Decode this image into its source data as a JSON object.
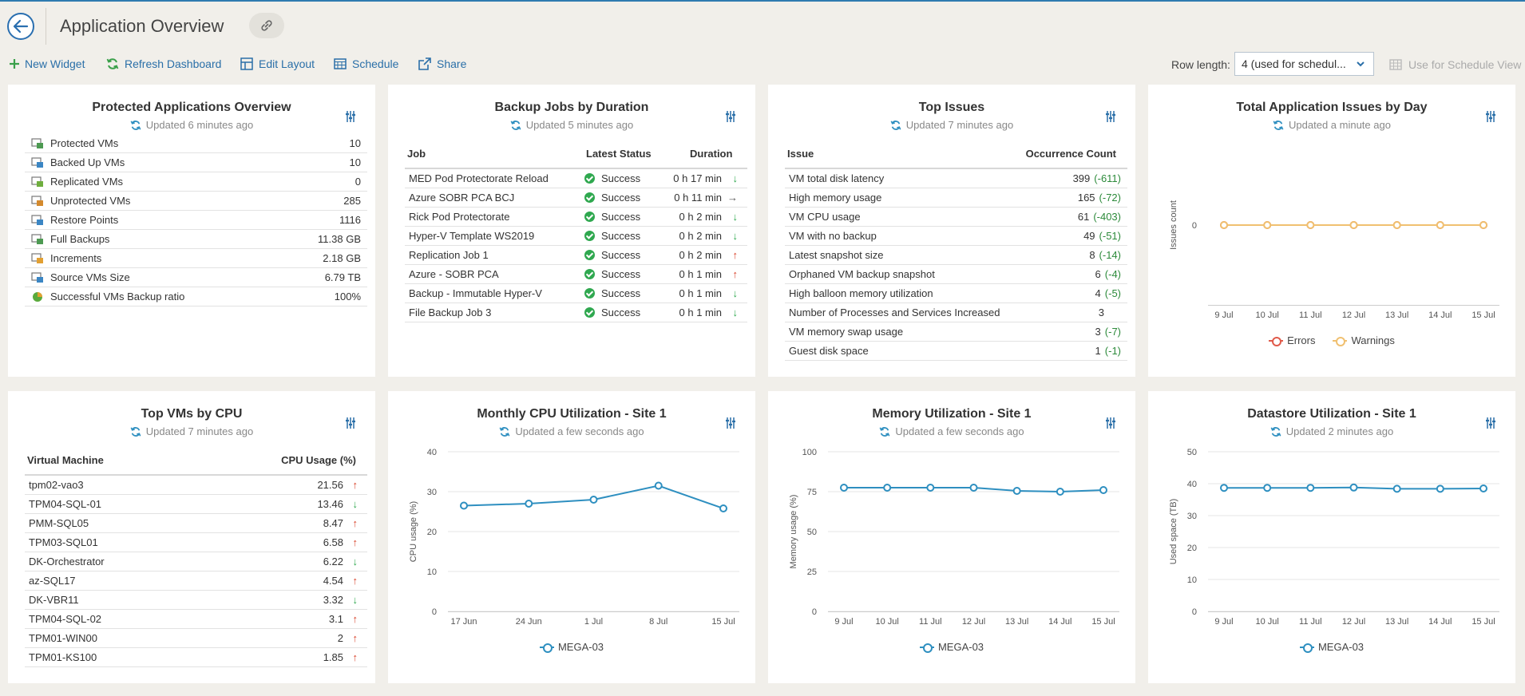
{
  "header": {
    "title": "Application Overview"
  },
  "toolbar": {
    "new_widget": "New Widget",
    "refresh": "Refresh Dashboard",
    "edit_layout": "Edit Layout",
    "schedule": "Schedule",
    "share": "Share",
    "row_length_label": "Row length:",
    "row_length_value": "4 (used for schedul...",
    "use_schedule_view": "Use for Schedule View"
  },
  "colors": {
    "accent": "#2a6fa8",
    "series": "#2e8fc0",
    "errors": "#e05a4a",
    "warnings": "#f0c070",
    "success": "#2fa84f",
    "up": "#d9442b"
  },
  "widgets": {
    "protected": {
      "title": "Protected Applications Overview",
      "updated": "Updated 6 minutes ago",
      "rows": [
        {
          "label": "Protected VMs",
          "value": "10",
          "icon": "protected-vm-icon"
        },
        {
          "label": "Backed Up VMs",
          "value": "10",
          "icon": "backed-up-vm-icon"
        },
        {
          "label": "Replicated VMs",
          "value": "0",
          "icon": "replicated-vm-icon"
        },
        {
          "label": "Unprotected VMs",
          "value": "285",
          "icon": "unprotected-vm-icon"
        },
        {
          "label": "Restore Points",
          "value": "1116",
          "icon": "restore-points-icon"
        },
        {
          "label": "Full Backups",
          "value": "11.38 GB",
          "icon": "full-backups-icon"
        },
        {
          "label": "Increments",
          "value": "2.18 GB",
          "icon": "increments-icon"
        },
        {
          "label": "Source VMs Size",
          "value": "6.79 TB",
          "icon": "source-size-icon"
        },
        {
          "label": "Successful VMs Backup ratio",
          "value": "100%",
          "icon": "pie-ratio-icon"
        }
      ]
    },
    "backup_jobs": {
      "title": "Backup Jobs by Duration",
      "updated": "Updated 5 minutes ago",
      "col_job": "Job",
      "col_status": "Latest Status",
      "col_duration": "Duration",
      "rows": [
        {
          "job": "MED Pod Protectorate Reload",
          "status": "Success",
          "duration": "0 h 17 min",
          "trend": "down"
        },
        {
          "job": "Azure SOBR PCA BCJ",
          "status": "Success",
          "duration": "0 h 11 min",
          "trend": "flat"
        },
        {
          "job": "Rick Pod Protectorate",
          "status": "Success",
          "duration": "0 h 2 min",
          "trend": "down"
        },
        {
          "job": "Hyper-V Template WS2019",
          "status": "Success",
          "duration": "0 h 2 min",
          "trend": "down"
        },
        {
          "job": "Replication Job 1",
          "status": "Success",
          "duration": "0 h 2 min",
          "trend": "up"
        },
        {
          "job": "Azure - SOBR PCA",
          "status": "Success",
          "duration": "0 h 1 min",
          "trend": "up"
        },
        {
          "job": "Backup - Immutable Hyper-V",
          "status": "Success",
          "duration": "0 h 1 min",
          "trend": "down"
        },
        {
          "job": "File Backup Job 3",
          "status": "Success",
          "duration": "0 h 1 min",
          "trend": "down"
        }
      ]
    },
    "top_issues": {
      "title": "Top Issues",
      "updated": "Updated 7 minutes ago",
      "col_issue": "Issue",
      "col_count": "Occurrence Count",
      "rows": [
        {
          "issue": "VM total disk latency",
          "count": "399",
          "delta": "(-611)"
        },
        {
          "issue": "High memory usage",
          "count": "165",
          "delta": "(-72)"
        },
        {
          "issue": "VM CPU usage",
          "count": "61",
          "delta": "(-403)"
        },
        {
          "issue": "VM with no backup",
          "count": "49",
          "delta": "(-51)"
        },
        {
          "issue": "Latest snapshot size",
          "count": "8",
          "delta": "(-14)"
        },
        {
          "issue": "Orphaned VM backup snapshot",
          "count": "6",
          "delta": "(-4)"
        },
        {
          "issue": "High balloon memory utilization",
          "count": "4",
          "delta": "(-5)"
        },
        {
          "issue": "Number of Processes and Services Increased",
          "count": "3",
          "delta": ""
        },
        {
          "issue": "VM memory swap usage",
          "count": "3",
          "delta": "(-7)"
        },
        {
          "issue": "Guest disk space",
          "count": "1",
          "delta": "(-1)"
        }
      ]
    },
    "issues_by_day": {
      "title": "Total Application Issues by Day",
      "updated": "Updated a minute ago"
    },
    "top_vms": {
      "title": "Top VMs by CPU",
      "updated": "Updated 7 minutes ago",
      "col_vm": "Virtual Machine",
      "col_cpu": "CPU Usage (%)",
      "rows": [
        {
          "vm": "tpm02-vao3",
          "cpu": "21.56",
          "trend": "up"
        },
        {
          "vm": "TPM04-SQL-01",
          "cpu": "13.46",
          "trend": "down"
        },
        {
          "vm": "PMM-SQL05",
          "cpu": "8.47",
          "trend": "up"
        },
        {
          "vm": "TPM03-SQL01",
          "cpu": "6.58",
          "trend": "up"
        },
        {
          "vm": "DK-Orchestrator",
          "cpu": "6.22",
          "trend": "down"
        },
        {
          "vm": "az-SQL17",
          "cpu": "4.54",
          "trend": "up"
        },
        {
          "vm": "DK-VBR11",
          "cpu": "3.32",
          "trend": "down"
        },
        {
          "vm": "TPM04-SQL-02",
          "cpu": "3.1",
          "trend": "up"
        },
        {
          "vm": "TPM01-WIN00",
          "cpu": "2",
          "trend": "up"
        },
        {
          "vm": "TPM01-KS100",
          "cpu": "1.85",
          "trend": "up"
        }
      ]
    },
    "cpu_util": {
      "title": "Monthly CPU Utilization - Site 1",
      "updated": "Updated a few seconds ago"
    },
    "mem_util": {
      "title": "Memory Utilization - Site 1",
      "updated": "Updated a few seconds ago"
    },
    "ds_util": {
      "title": "Datastore Utilization - Site 1",
      "updated": "Updated 2 minutes ago"
    }
  },
  "chart_data": [
    {
      "id": "issues",
      "type": "line",
      "title": "Total Application Issues by Day",
      "categories": [
        "9 Jul",
        "10 Jul",
        "11 Jul",
        "12 Jul",
        "13 Jul",
        "14 Jul",
        "15 Jul"
      ],
      "ylabel": "Issues count",
      "yticks": [
        "0"
      ],
      "ylim": [
        -1,
        1
      ],
      "series": [
        {
          "name": "Errors",
          "values": [
            0,
            0,
            0,
            0,
            0,
            0,
            0
          ],
          "color": "#e05a4a"
        },
        {
          "name": "Warnings",
          "values": [
            0,
            0,
            0,
            0,
            0,
            0,
            0
          ],
          "color": "#f0c070"
        }
      ]
    },
    {
      "id": "cpu",
      "type": "line",
      "title": "Monthly CPU Utilization - Site 1",
      "categories": [
        "17 Jun",
        "24 Jun",
        "1 Jul",
        "8 Jul",
        "15 Jul"
      ],
      "ylabel": "CPU usage (%)",
      "yticks": [
        "0",
        "10",
        "20",
        "30",
        "40"
      ],
      "ylim": [
        0,
        40
      ],
      "series": [
        {
          "name": "MEGA-03",
          "values": [
            26.5,
            27,
            28,
            31.5,
            25.8
          ],
          "color": "#2e8fc0"
        }
      ]
    },
    {
      "id": "mem",
      "type": "line",
      "title": "Memory Utilization - Site 1",
      "categories": [
        "9 Jul",
        "10 Jul",
        "11 Jul",
        "12 Jul",
        "13 Jul",
        "14 Jul",
        "15 Jul"
      ],
      "ylabel": "Memory usage (%)",
      "yticks": [
        "0",
        "25",
        "50",
        "75",
        "100"
      ],
      "ylim": [
        0,
        100
      ],
      "series": [
        {
          "name": "MEGA-03",
          "values": [
            77.5,
            77.5,
            77.5,
            77.5,
            75.5,
            75,
            76
          ],
          "color": "#2e8fc0"
        }
      ]
    },
    {
      "id": "ds",
      "type": "line",
      "title": "Datastore Utilization - Site 1",
      "categories": [
        "9 Jul",
        "10 Jul",
        "11 Jul",
        "12 Jul",
        "13 Jul",
        "14 Jul",
        "15 Jul"
      ],
      "ylabel": "Used space (TB)",
      "yticks": [
        "0",
        "10",
        "20",
        "30",
        "40",
        "50"
      ],
      "ylim": [
        0,
        50
      ],
      "series": [
        {
          "name": "MEGA-03",
          "values": [
            38.7,
            38.7,
            38.7,
            38.8,
            38.4,
            38.4,
            38.5
          ],
          "color": "#2e8fc0"
        }
      ]
    }
  ]
}
